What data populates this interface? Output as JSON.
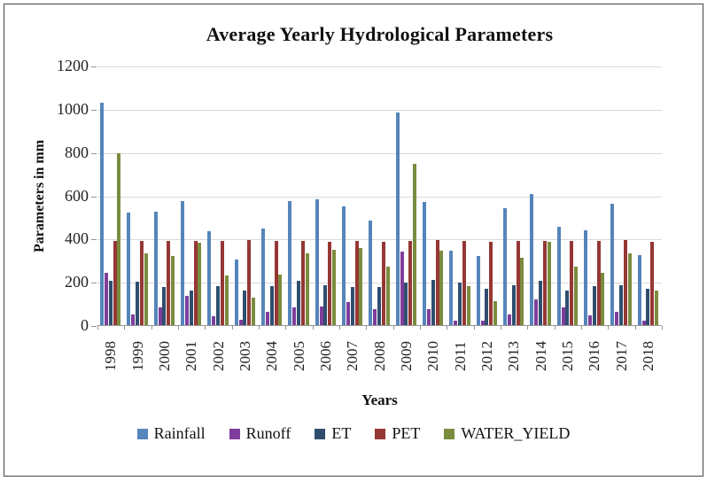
{
  "frame": {
    "background": "#ffffff",
    "border_color": "#454545"
  },
  "chart_data": {
    "type": "bar",
    "title": "Average Yearly Hydrological Parameters",
    "xlabel": "Years",
    "ylabel": "Parameters in mm",
    "ylim": [
      0,
      1200
    ],
    "y_ticks": [
      0,
      200,
      400,
      600,
      800,
      1000,
      1200
    ],
    "grid": true,
    "legend_position": "bottom",
    "categories": [
      "1998",
      "1999",
      "2000",
      "2001",
      "2002",
      "2003",
      "2004",
      "2005",
      "2006",
      "2007",
      "2008",
      "2009",
      "2010",
      "2011",
      "2012",
      "2013",
      "2014",
      "2015",
      "2016",
      "2017",
      "2018"
    ],
    "series": [
      {
        "name": "Rainfall",
        "color": "#5585bb",
        "values": [
          1030,
          520,
          525,
          575,
          435,
          305,
          445,
          575,
          580,
          550,
          485,
          985,
          570,
          345,
          320,
          540,
          605,
          455,
          440,
          560,
          325
        ]
      },
      {
        "name": "Runoff",
        "color": "#7e3d9c",
        "values": [
          240,
          50,
          80,
          135,
          40,
          25,
          60,
          80,
          85,
          105,
          75,
          340,
          75,
          20,
          20,
          50,
          120,
          80,
          45,
          60,
          20
        ]
      },
      {
        "name": "ET",
        "color": "#2f4e6e",
        "values": [
          205,
          200,
          175,
          160,
          180,
          160,
          180,
          205,
          185,
          175,
          175,
          195,
          210,
          195,
          170,
          185,
          205,
          160,
          180,
          185,
          170
        ]
      },
      {
        "name": "PET",
        "color": "#953735",
        "values": [
          390,
          390,
          390,
          390,
          390,
          395,
          390,
          390,
          385,
          390,
          385,
          390,
          395,
          390,
          385,
          390,
          390,
          390,
          390,
          395,
          385
        ]
      },
      {
        "name": "WATER_YIELD",
        "color": "#7a8c3e",
        "values": [
          795,
          330,
          320,
          380,
          230,
          125,
          235,
          330,
          350,
          355,
          270,
          745,
          345,
          180,
          110,
          310,
          385,
          270,
          240,
          330,
          160
        ]
      }
    ],
    "axis_colors": {
      "gridline": "#d9d9d9",
      "axis_line": "#959595",
      "text": "#222222"
    }
  }
}
